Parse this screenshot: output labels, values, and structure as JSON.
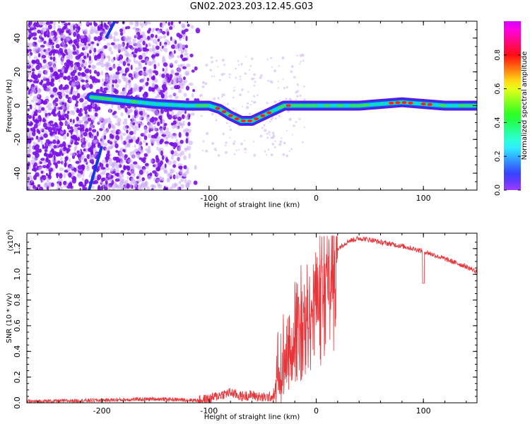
{
  "title": "GN02.2023.203.12.45.G03",
  "chart_data": [
    {
      "type": "heatmap",
      "xlabel": "Height of straight line (km)",
      "ylabel": "Frequency (Hz)",
      "xlim": [
        -270,
        150
      ],
      "ylim": [
        -50,
        50
      ],
      "xticks": [
        -200,
        -100,
        0,
        100
      ],
      "yticks": [
        -40,
        -20,
        0,
        20,
        40
      ],
      "colorbar": {
        "label": "Normalized spectral amplitude",
        "range": [
          0.0,
          1.0
        ],
        "ticks": [
          "0.0",
          "0.2",
          "0.4",
          "0.6",
          "0.8"
        ]
      },
      "ridge": {
        "x": [
          -210,
          -180,
          -150,
          -120,
          -100,
          -90,
          -80,
          -70,
          -60,
          -50,
          -40,
          -30,
          -20,
          -10,
          0,
          20,
          40,
          60,
          80,
          100,
          120,
          150
        ],
        "frequency": [
          5,
          3,
          1,
          0,
          0,
          -2,
          -6,
          -9,
          -9,
          -6,
          -3,
          0,
          0,
          0,
          0,
          0,
          0,
          1,
          2,
          1,
          0,
          0
        ]
      }
    },
    {
      "type": "line",
      "xlabel": "Height of straight line (km)",
      "ylabel": "SNR (10 * v/v)",
      "yscale_label": "(x10",
      "yscale_exp": "4",
      "yscale_close": ")",
      "xlim": [
        -270,
        150
      ],
      "ylim": [
        0.0,
        1.32
      ],
      "xticks": [
        -200,
        -100,
        0,
        100
      ],
      "yticks": [
        "0.0",
        "0.2",
        "0.4",
        "0.6",
        "0.8",
        "1.0",
        "1.2"
      ],
      "series": [
        {
          "color": "#e8353a",
          "x": [
            -270,
            -200,
            -150,
            -110,
            -100,
            -90,
            -80,
            -70,
            -60,
            -50,
            -40,
            -38,
            -30,
            -20,
            -15,
            -10,
            -5,
            0,
            10,
            20,
            30,
            40,
            50,
            60,
            80,
            100,
            120,
            140,
            150
          ],
          "y": [
            0.01,
            0.02,
            0.03,
            0.02,
            0.03,
            0.06,
            0.08,
            0.05,
            0.06,
            0.04,
            0.05,
            0.15,
            0.4,
            0.6,
            0.75,
            0.7,
            0.9,
            0.95,
            1.05,
            1.2,
            1.26,
            1.28,
            1.27,
            1.25,
            1.22,
            1.18,
            1.12,
            1.06,
            1.02
          ]
        }
      ]
    }
  ]
}
